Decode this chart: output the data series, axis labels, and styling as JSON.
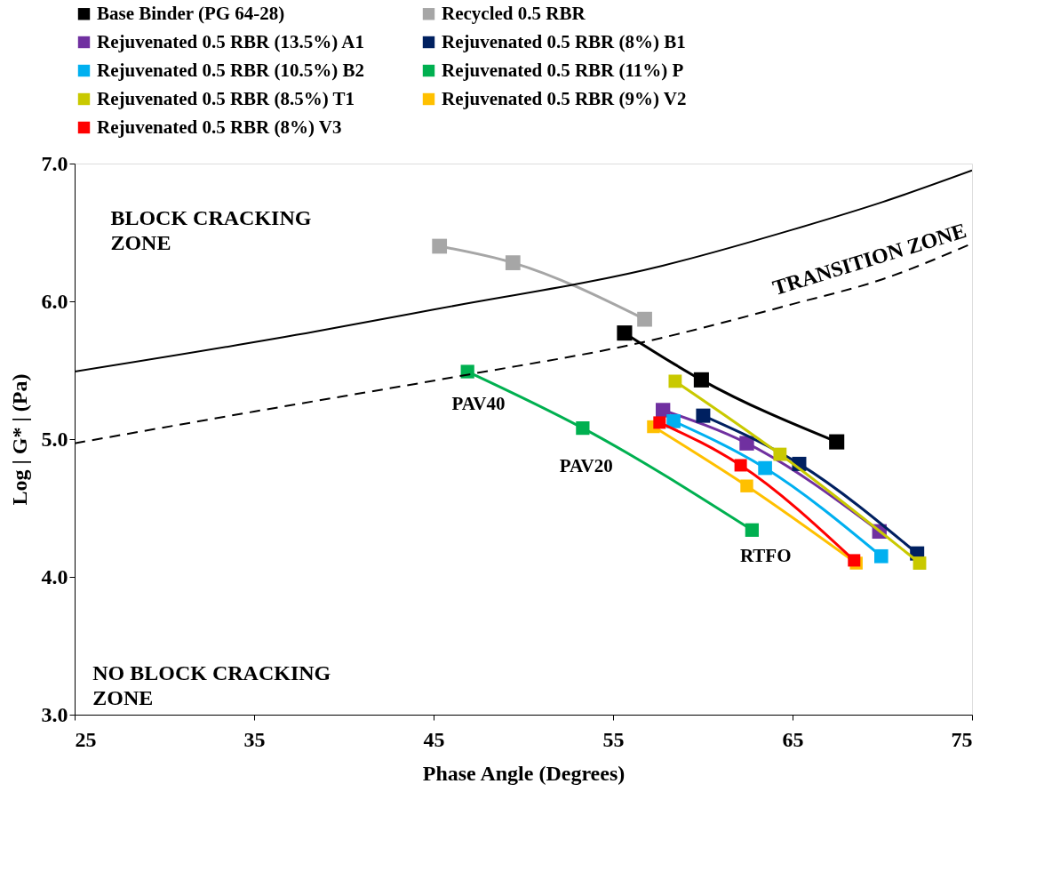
{
  "chart_data": {
    "type": "line",
    "xlabel": "Phase Angle (Degrees)",
    "ylabel": "Log | G* | (Pa)",
    "xlim": [
      25,
      75
    ],
    "xticks": [
      25,
      35,
      45,
      55,
      65,
      75
    ],
    "ylim": [
      3,
      7
    ],
    "yticks": [
      {
        "value": 3,
        "label": "3.0"
      },
      {
        "value": 4,
        "label": "4.0"
      },
      {
        "value": 5,
        "label": "5.0"
      },
      {
        "value": 6,
        "label": "6.0"
      },
      {
        "value": 7,
        "label": "7.0"
      }
    ],
    "grid": false,
    "legend": "top",
    "marker": "square",
    "series": [
      {
        "name": "Base Binder (PG 64-28)",
        "color": "#000000",
        "x": [
          55.64,
          59.92,
          67.46
        ],
        "values": [
          5.77,
          5.43,
          4.98
        ]
      },
      {
        "name": "Recycled 0.5 RBR",
        "color": "#a6a6a6",
        "x": [
          45.33,
          49.42,
          56.76
        ],
        "values": [
          6.4,
          6.28,
          5.87
        ]
      },
      {
        "name": "Rejuvenated 0.5 RBR (13.5%) A1",
        "color": "#7030a0",
        "x": [
          57.78,
          62.45,
          69.84
        ],
        "values": [
          5.21,
          4.97,
          4.33
        ]
      },
      {
        "name": "Rejuvenated 0.5 RBR (8%) B1",
        "color": "#002060",
        "x": [
          60.02,
          65.37,
          71.94
        ],
        "values": [
          5.17,
          4.82,
          4.17
        ]
      },
      {
        "name": "Rejuvenated 0.5 RBR (10.5%) B2",
        "color": "#00b0f0",
        "x": [
          58.37,
          63.47,
          69.94
        ],
        "values": [
          5.13,
          4.79,
          4.15
        ]
      },
      {
        "name": "Rejuvenated 0.5 RBR (11%) P",
        "color": "#00b050",
        "x": [
          46.89,
          53.31,
          62.74
        ],
        "values": [
          5.49,
          5.08,
          4.34
        ]
      },
      {
        "name": "Rejuvenated 0.5 RBR (8.5%) T1",
        "color": "#c9c900",
        "x": [
          58.46,
          64.3,
          72.08
        ],
        "values": [
          5.42,
          4.89,
          4.1
        ]
      },
      {
        "name": "Rejuvenated 0.5 RBR (9%) V2",
        "color": "#ffc000",
        "x": [
          57.25,
          62.45,
          68.55
        ],
        "values": [
          5.09,
          4.66,
          4.1
        ]
      },
      {
        "name": "Rejuvenated 0.5 RBR (8%) V3",
        "color": "#ff0000",
        "x": [
          57.59,
          62.11,
          68.43
        ],
        "values": [
          5.12,
          4.81,
          4.12
        ]
      },
      {
        "type": "line",
        "color": "#000000",
        "marker": "none",
        "line_style": "solid",
        "x": [
          25,
          38.4,
          45,
          57.8,
          65,
          70,
          75
        ],
        "values": [
          5.49,
          5.78,
          5.94,
          6.26,
          6.52,
          6.72,
          6.95
        ]
      },
      {
        "type": "line",
        "color": "#000000",
        "marker": "none",
        "line_style": "dashed",
        "x": [
          25,
          35,
          47,
          56.2,
          65,
          70,
          75
        ],
        "values": [
          4.97,
          5.2,
          5.47,
          5.69,
          5.98,
          6.16,
          6.42
        ]
      }
    ],
    "annotations": [
      "BLOCK CRACKING\nZONE",
      "TRANSITION ZONE",
      "NO BLOCK CRACKING\nZONE",
      "PAV40",
      "PAV20",
      "RTFO"
    ]
  }
}
